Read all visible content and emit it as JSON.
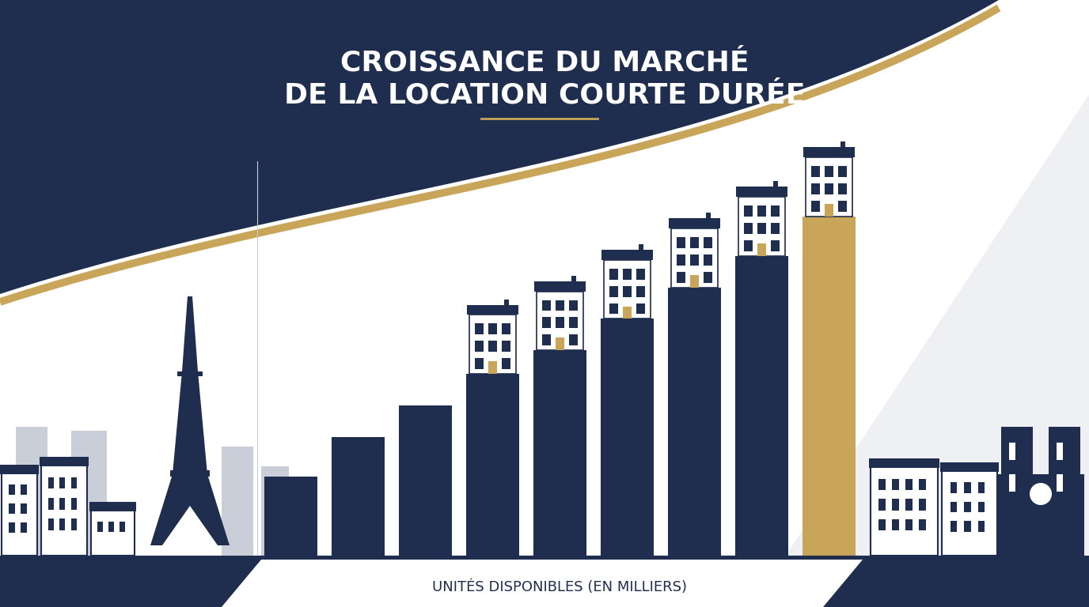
{
  "chart_data": {
    "type": "bar",
    "title": "CROISSANCE DU MARCHÉ\nDE LA LOCATION COURTE DURÉE",
    "x_label": "UNITÉS DISPONIBLES (EN MILLIERS)",
    "categories": [
      null,
      null,
      null,
      null,
      null,
      null,
      null,
      null,
      null
    ],
    "values": [
      10,
      15,
      19,
      23,
      26,
      30,
      34,
      38,
      43
    ],
    "colors": [
      "#1f2d4e",
      "#1f2d4e",
      "#1f2d4e",
      "#1f2d4e",
      "#1f2d4e",
      "#1f2d4e",
      "#1f2d4e",
      "#1f2d4e",
      "#c9a55a"
    ],
    "ylim": [
      0,
      50
    ],
    "tick_labels": false,
    "grid": false
  }
}
